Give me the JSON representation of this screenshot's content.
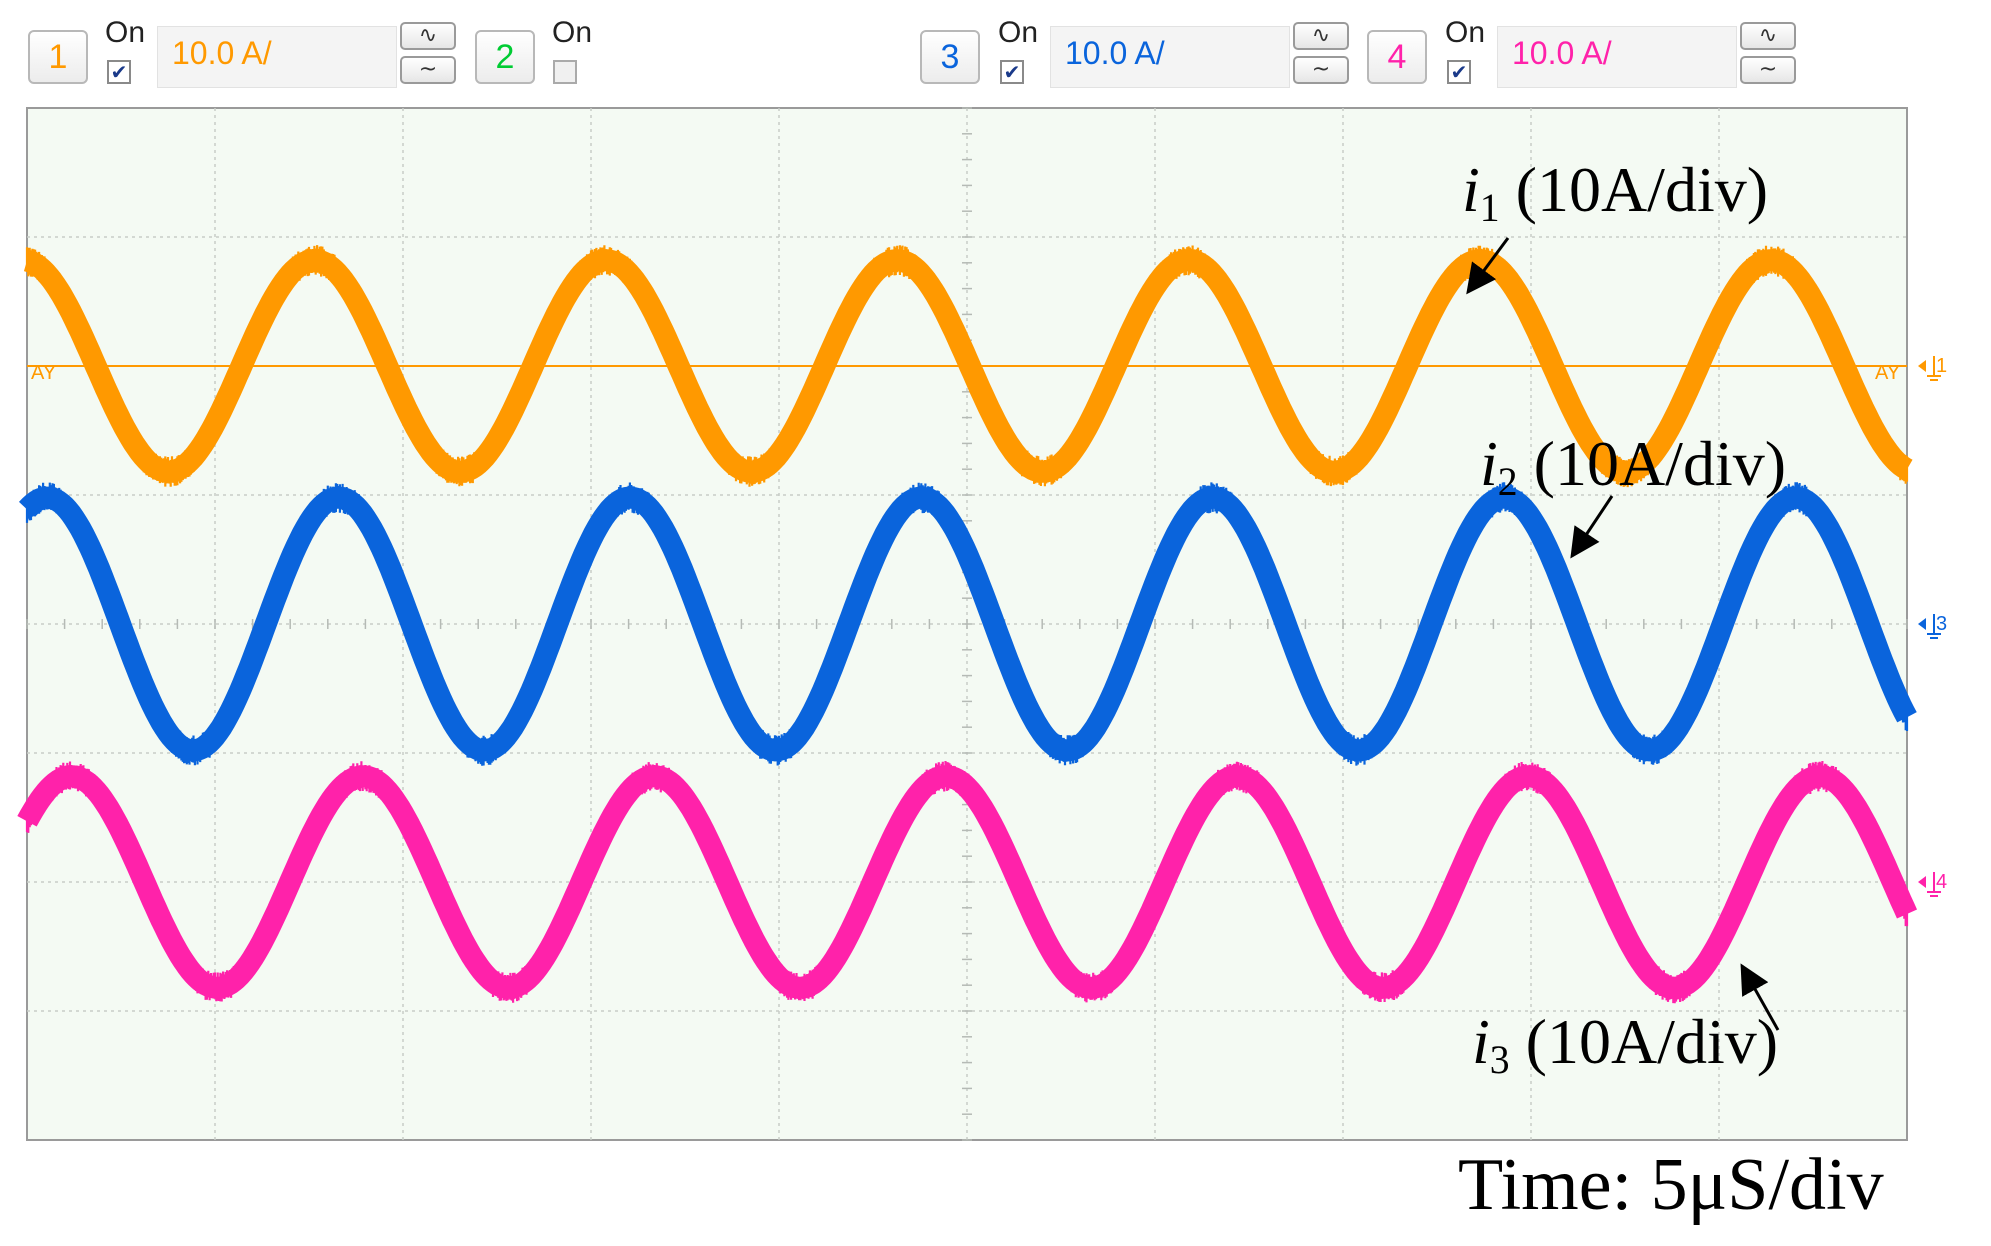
{
  "toolbar": {
    "channels": [
      {
        "number": "1",
        "on_label": "On",
        "enabled": true,
        "scale": "10.0 A/",
        "color": "#ff9900"
      },
      {
        "number": "2",
        "on_label": "On",
        "enabled": false,
        "scale": "",
        "color": "#00cc33"
      },
      {
        "number": "3",
        "on_label": "On",
        "enabled": true,
        "scale": "10.0 A/",
        "color": "#0a64dc"
      },
      {
        "number": "4",
        "on_label": "On",
        "enabled": true,
        "scale": "10.0 A/",
        "color": "#ff22aa"
      }
    ],
    "coupling_icons": [
      "ac-coupling-icon",
      "dc-coupling-icon"
    ]
  },
  "chart_data": {
    "type": "line",
    "x_unit": "div",
    "y_unit": "div",
    "xlim": [
      0,
      10
    ],
    "ylim": [
      -4,
      4
    ],
    "grid": true,
    "series": [
      {
        "name": "i1",
        "label_main": "i",
        "label_sub": "1",
        "label_suffix": " (10A/div)",
        "color": "#ff9900",
        "offset_div": 2.0,
        "amplitude_div": 0.82,
        "period_div": 1.55,
        "phase_deg": 95,
        "noise_div": 0.12
      },
      {
        "name": "i2",
        "label_main": "i",
        "label_sub": "2",
        "label_suffix": " (10A/div)",
        "color": "#0a64dc",
        "offset_div": 0.0,
        "amplitude_div": 0.98,
        "period_div": 1.55,
        "phase_deg": 65,
        "noise_div": 0.12
      },
      {
        "name": "i3",
        "label_main": "i",
        "label_sub": "3",
        "label_suffix": " (10A/div)",
        "color": "#ff22aa",
        "offset_div": -2.0,
        "amplitude_div": 0.82,
        "period_div": 1.55,
        "phase_deg": 35,
        "noise_div": 0.12
      }
    ],
    "ground_markers": [
      {
        "label": "1",
        "color": "#ff9900",
        "level_div": 2.0
      },
      {
        "label": "3",
        "color": "#0a64dc",
        "level_div": 0.0
      },
      {
        "label": "4",
        "color": "#ff22aa",
        "level_div": -2.0
      }
    ],
    "trigger_level": {
      "label": "AY",
      "label_right": "AY",
      "color": "#ff9900",
      "level_div": 2.0
    },
    "time_label": "Time: 5μS/div"
  }
}
